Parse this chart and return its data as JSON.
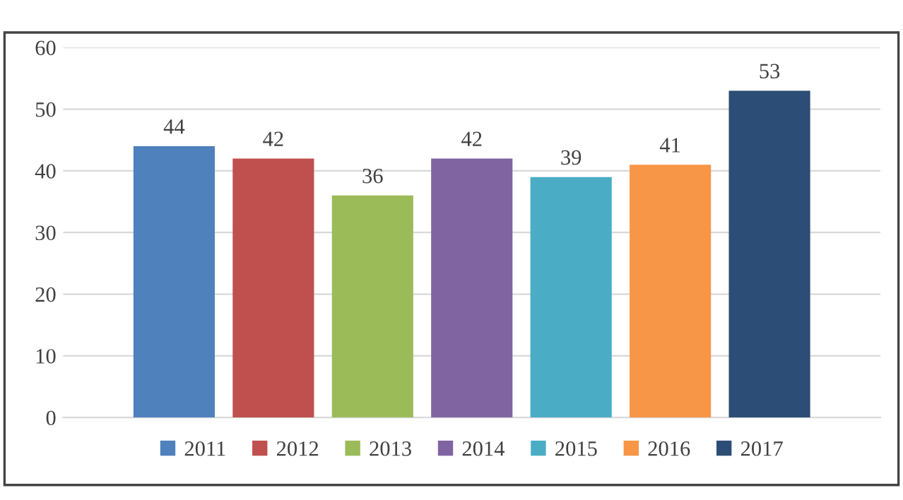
{
  "chart_data": {
    "type": "bar",
    "categories": [
      null
    ],
    "series": [
      {
        "name": "2011",
        "color": "#4f81bd",
        "values": [
          44
        ]
      },
      {
        "name": "2012",
        "color": "#c0504d",
        "values": [
          42
        ]
      },
      {
        "name": "2013",
        "color": "#9bbb59",
        "values": [
          36
        ]
      },
      {
        "name": "2014",
        "color": "#8064a2",
        "values": [
          42
        ]
      },
      {
        "name": "2015",
        "color": "#4bacc6",
        "values": [
          39
        ]
      },
      {
        "name": "2016",
        "color": "#f79646",
        "values": [
          41
        ]
      },
      {
        "name": "2017",
        "color": "#2c4d75",
        "values": [
          53
        ]
      }
    ],
    "ylim": [
      0,
      60
    ],
    "yticks": [
      0,
      10,
      20,
      30,
      40,
      50,
      60
    ],
    "grid": "y",
    "legend": "bottom",
    "data_labels": true
  }
}
